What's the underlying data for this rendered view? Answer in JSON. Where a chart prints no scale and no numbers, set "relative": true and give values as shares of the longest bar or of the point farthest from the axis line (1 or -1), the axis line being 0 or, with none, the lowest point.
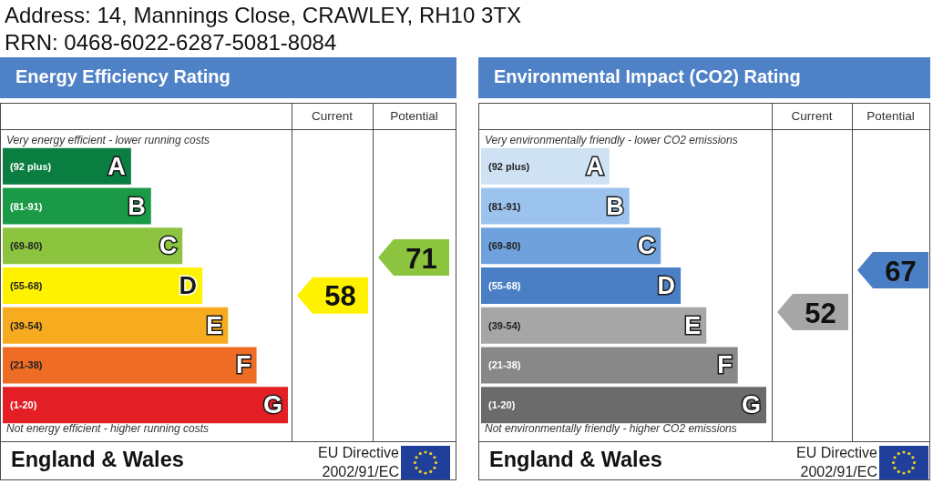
{
  "chart_data": [
    {
      "type": "other",
      "title": "Address: 14, Mannings Close, CRAWLEY, RH10 3TX",
      "subtitle": "RRN: 0468-6022-6287-5081-8084"
    },
    {
      "type": "bar",
      "orientation": "horizontal",
      "relative": true,
      "title": "Energy Efficiency Rating",
      "categories": [
        "(92 plus)",
        "(81-91)",
        "(69-80)",
        "(55-68)",
        "(39-54)",
        "(21-38)",
        "(1-20)"
      ],
      "y2_categories": [
        "A",
        "B",
        "C",
        "D",
        "E",
        "F",
        "G"
      ],
      "values": [
        0.45,
        0.52,
        0.63,
        0.7,
        0.79,
        0.89,
        1
      ],
      "colors": [
        "#0a7d41",
        "#1a9a46",
        "#8cc43f",
        "#fff200",
        "#f7ab1e",
        "#ee6c23",
        "#e31e24"
      ],
      "annotations": [
        "Very energy efficient - lower running costs",
        "Not energy efficient - higher running costs",
        "Current",
        "Potential",
        "58",
        "71",
        "England & Wales",
        "EU Directive",
        "2002/91/EC"
      ]
    },
    {
      "type": "bar",
      "orientation": "horizontal",
      "relative": true,
      "title": "Environmental Impact (CO2) Rating",
      "categories": [
        "(92 plus)",
        "(81-91)",
        "(69-80)",
        "(55-68)",
        "(39-54)",
        "(21-38)",
        "(1-20)"
      ],
      "y2_categories": [
        "A",
        "B",
        "C",
        "D",
        "E",
        "F",
        "G"
      ],
      "values": [
        0.45,
        0.52,
        0.63,
        0.7,
        0.79,
        0.9,
        1
      ],
      "colors": [
        "#cfe2f3",
        "#9cc2ee",
        "#6fa2dc",
        "#4a7fc6",
        "#a6a6a6",
        "#888888",
        "#6b6b6b"
      ],
      "annotations": [
        "Very environmentally friendly - lower CO2 emissions",
        "Not environmentally friendly - higher CO2 emissions",
        "Current",
        "Potential",
        "52",
        "67",
        "England & Wales",
        "EU Directive",
        "2002/91/EC"
      ]
    }
  ]
}
